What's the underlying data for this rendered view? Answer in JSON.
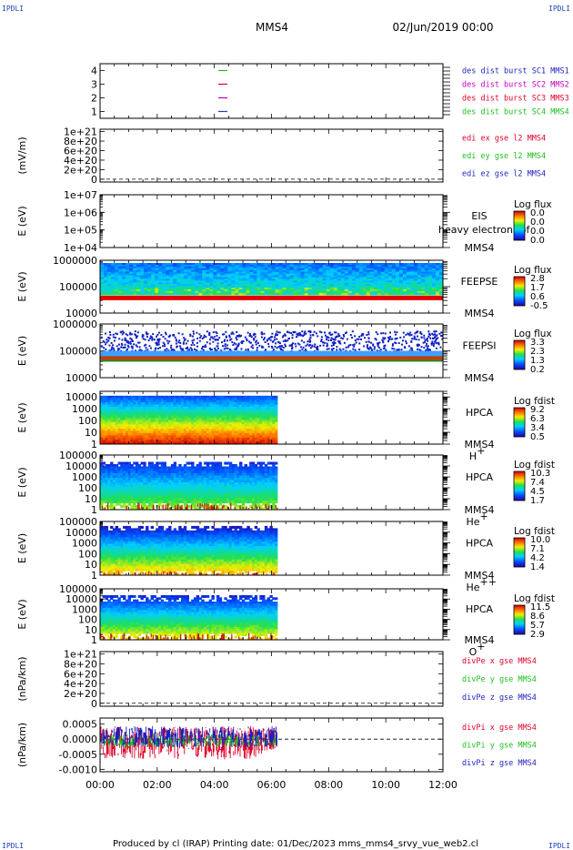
{
  "header": {
    "corner_text": "IPDLI",
    "mission": "MMS4",
    "datetime": "02/Jun/2019 00:00"
  },
  "footer": "Produced by cl (IRAP)    Printing date: 01/Dec/2023    mms_mms4_srvy_vue_web2.cl",
  "chart_data": {
    "type": "heatmap",
    "x": {
      "ticks": [
        "00:00",
        "02:00",
        "04:00",
        "06:00",
        "08:00",
        "10:00",
        "12:00"
      ],
      "range_hours": [
        0,
        12
      ],
      "data_coverage_hours": [
        0,
        6.2
      ]
    },
    "panels": [
      {
        "id": "burst",
        "type": "timeline",
        "yticks": [
          "4",
          "3",
          "2",
          "1"
        ],
        "yvalues": [
          4,
          3,
          2,
          1
        ],
        "ylim": [
          0.5,
          4.5
        ],
        "markers": [
          {
            "y": 4,
            "color": "#1fbf1f"
          },
          {
            "y": 3,
            "color": "#e0002a"
          },
          {
            "y": 2,
            "color": "#c000c0"
          },
          {
            "y": 1,
            "color": "#1f3fbf"
          }
        ],
        "legend": [
          {
            "text": "des dist burst SC1 MMS1",
            "color": "#1f1fbf"
          },
          {
            "text": "des dist burst SC2 MMS2",
            "color": "#c000c0"
          },
          {
            "text": "des dist burst SC3 MMS3",
            "color": "#e0002a"
          },
          {
            "text": "des dist burst SC4 MMS4",
            "color": "#1fbf1f"
          }
        ]
      },
      {
        "id": "edi",
        "type": "line",
        "ylabel": "(mV/m)",
        "yticks": [
          "1e+21",
          "8e+20",
          "6e+20",
          "4e+20",
          "2e+20",
          "0"
        ],
        "yvalues": [
          1e+21,
          8e+20,
          6e+20,
          4e+20,
          2e+20,
          0
        ],
        "ylim": [
          -6e+19,
          1.05e+21
        ],
        "zero_line": true,
        "legend": [
          {
            "text": "edi ex gse l2 MMS4",
            "color": "#e0002a"
          },
          {
            "text": "edi ey gse l2 MMS4",
            "color": "#1fbf1f"
          },
          {
            "text": "edi ez gse l2 MMS4",
            "color": "#1f1fbf"
          }
        ]
      },
      {
        "id": "eis",
        "type": "spectrogram",
        "ylabel": "E (eV)",
        "yscale": "log",
        "yticks": [
          "1e+07",
          "1e+06",
          "1e+05",
          "1e+04"
        ],
        "ylim": [
          10000,
          10000000
        ],
        "instrument": [
          "EIS",
          "MMS4"
        ],
        "overlay_text": "heavy electron tof",
        "colorbar": {
          "title": "Log flux",
          "values": [
            "0.0",
            "0.0",
            "0.0",
            "0.0"
          ]
        }
      },
      {
        "id": "feepse",
        "type": "spectrogram",
        "ylabel": "E (eV)",
        "yscale": "log",
        "yticks": [
          "1000000",
          "100000",
          "10000"
        ],
        "ylim": [
          10000,
          1000000
        ],
        "instrument": [
          "FEEPSE",
          "MMS4"
        ],
        "colorbar": {
          "title": "Log flux",
          "values": [
            "2.8",
            "1.7",
            "0.6",
            "-0.5"
          ]
        }
      },
      {
        "id": "feepsi",
        "type": "spectrogram",
        "ylabel": "E (eV)",
        "yscale": "log",
        "yticks": [
          "1000000",
          "100000",
          "10000"
        ],
        "ylim": [
          10000,
          1000000
        ],
        "instrument": [
          "FEEPSI",
          "MMS4"
        ],
        "colorbar": {
          "title": "Log flux",
          "values": [
            "3.3",
            "2.3",
            "1.3",
            "0.2"
          ]
        }
      },
      {
        "id": "hpca_h",
        "type": "spectrogram",
        "ylabel": "E (eV)",
        "yscale": "log",
        "yticks": [
          "10000",
          "1000",
          "100",
          "10",
          "1"
        ],
        "ylim": [
          1,
          30000
        ],
        "instrument": [
          "HPCA",
          "MMS4"
        ],
        "species": "H",
        "species_sup": "+",
        "colorbar": {
          "title": "Log fdist",
          "values": [
            "9.2",
            "6.3",
            "3.4",
            "0.5"
          ]
        }
      },
      {
        "id": "hpca_he",
        "type": "spectrogram",
        "ylabel": "E (eV)",
        "yscale": "log",
        "yticks": [
          "100000",
          "10000",
          "1000",
          "100",
          "10",
          "1"
        ],
        "ylim": [
          1,
          100000
        ],
        "instrument": [
          "HPCA",
          "MMS4"
        ],
        "species": "He",
        "species_sup": "+",
        "colorbar": {
          "title": "Log fdist",
          "values": [
            "10.3",
            "7.4",
            "4.5",
            "1.7"
          ]
        }
      },
      {
        "id": "hpca_hepp",
        "type": "spectrogram",
        "ylabel": "E (eV)",
        "yscale": "log",
        "yticks": [
          "100000",
          "10000",
          "1000",
          "100",
          "10",
          "1"
        ],
        "ylim": [
          1,
          100000
        ],
        "instrument": [
          "HPCA",
          "MMS4"
        ],
        "species": "He",
        "species_sup": "++",
        "colorbar": {
          "title": "Log fdist",
          "values": [
            "10.0",
            "7.1",
            "4.2",
            "1.4"
          ]
        }
      },
      {
        "id": "hpca_o",
        "type": "spectrogram",
        "ylabel": "E (eV)",
        "yscale": "log",
        "yticks": [
          "100000",
          "10000",
          "1000",
          "100",
          "10",
          "1"
        ],
        "ylim": [
          1,
          100000
        ],
        "instrument": [
          "HPCA",
          "MMS4"
        ],
        "species": "O",
        "species_sup": "+",
        "colorbar": {
          "title": "Log fdist",
          "values": [
            "11.5",
            "8.6",
            "5.7",
            "2.9"
          ]
        }
      },
      {
        "id": "divpe",
        "type": "line",
        "ylabel": "(nPa/km)",
        "yticks": [
          "1e+21",
          "8e+20",
          "6e+20",
          "4e+20",
          "2e+20",
          "0"
        ],
        "yvalues": [
          1e+21,
          8e+20,
          6e+20,
          4e+20,
          2e+20,
          0
        ],
        "ylim": [
          -6e+19,
          1.05e+21
        ],
        "zero_line": true,
        "legend": [
          {
            "text": "divPe x gse MMS4",
            "color": "#e0002a"
          },
          {
            "text": "divPe y gse MMS4",
            "color": "#1fbf1f"
          },
          {
            "text": "divPe z gse MMS4",
            "color": "#1f1fbf"
          }
        ]
      },
      {
        "id": "divpi",
        "type": "line",
        "ylabel": "(nPa/km)",
        "yticks": [
          "0.0005",
          "0.0000",
          "-0.0005",
          "-0.0010"
        ],
        "yvalues": [
          0.0005,
          0.0,
          -0.0005,
          -0.001
        ],
        "ylim": [
          -0.00108,
          0.0007
        ],
        "zero_line": true,
        "legend": [
          {
            "text": "divPi x gse MMS4",
            "color": "#e0002a"
          },
          {
            "text": "divPi y gse MMS4",
            "color": "#1fbf1f"
          },
          {
            "text": "divPi z gse MMS4",
            "color": "#1f1fbf"
          }
        ]
      }
    ]
  }
}
